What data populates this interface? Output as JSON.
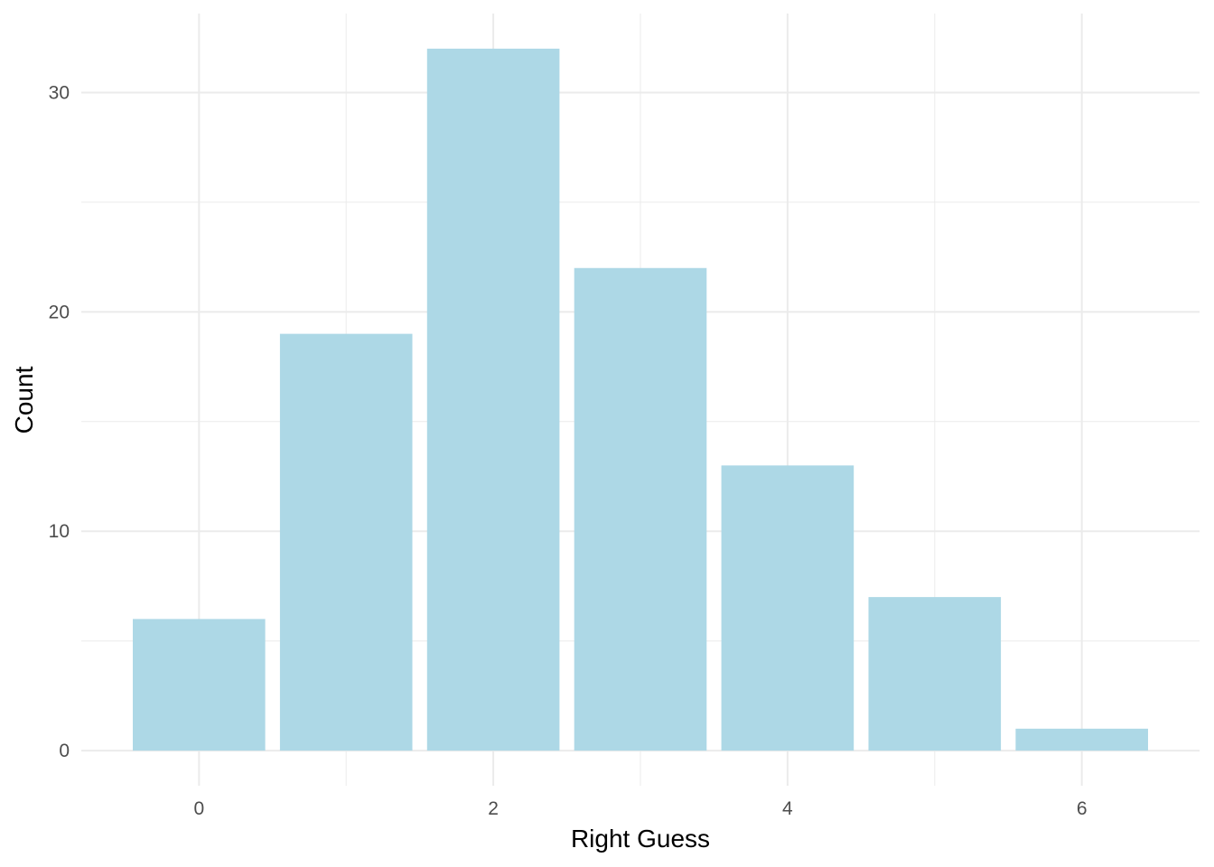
{
  "chart_data": {
    "type": "bar",
    "x": [
      0,
      1,
      2,
      3,
      4,
      5,
      6
    ],
    "values": [
      6,
      19,
      32,
      22,
      13,
      7,
      1
    ],
    "xlabel": "Right Guess",
    "ylabel": "Count",
    "x_ticks": [
      0,
      2,
      4,
      6
    ],
    "y_ticks": [
      0,
      10,
      20,
      30
    ],
    "xlim": [
      -0.8,
      6.8
    ],
    "ylim": [
      -1.6,
      33.6
    ],
    "grid": true,
    "legend": "none",
    "bar_color": "#add8e6"
  }
}
